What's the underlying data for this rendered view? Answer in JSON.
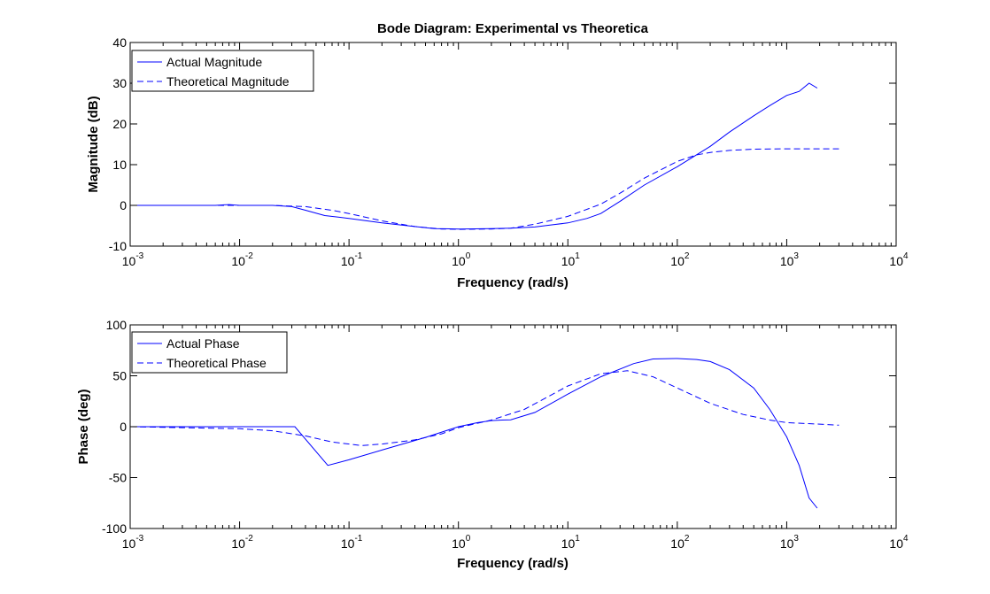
{
  "figure": {
    "title": "Bode Diagram: Experimental vs Theoretica"
  },
  "chart_data": [
    {
      "type": "line",
      "title": "Bode Diagram: Experimental vs Theoretica",
      "xlabel": "Frequency (rad/s)",
      "ylabel": "Magnitude (dB)",
      "xscale": "log",
      "xlim": [
        0.001,
        10000
      ],
      "ylim": [
        -10,
        40
      ],
      "yticks": [
        -10,
        0,
        10,
        20,
        30,
        40
      ],
      "xtick_labels": [
        {
          "base": "10",
          "exp": "-3"
        },
        {
          "base": "10",
          "exp": "-2"
        },
        {
          "base": "10",
          "exp": "-1"
        },
        {
          "base": "10",
          "exp": "0"
        },
        {
          "base": "10",
          "exp": "1"
        },
        {
          "base": "10",
          "exp": "2"
        },
        {
          "base": "10",
          "exp": "3"
        },
        {
          "base": "10",
          "exp": "4"
        }
      ],
      "grid": false,
      "legend_position": "top-left",
      "series": [
        {
          "name": "Actual Magnitude",
          "style": "solid",
          "color": "#0000ff",
          "x": [
            0.001,
            0.006,
            0.008,
            0.01,
            0.02,
            0.03,
            0.04,
            0.06,
            0.1,
            0.2,
            0.4,
            0.6,
            1,
            2,
            3,
            5,
            7,
            10,
            15,
            20,
            30,
            50,
            100,
            200,
            300,
            500,
            700,
            1000,
            1300,
            1600,
            1900
          ],
          "y": [
            0,
            0,
            0.2,
            0,
            0,
            -0.3,
            -1.2,
            -2.5,
            -3.2,
            -4.3,
            -5.2,
            -5.7,
            -5.8,
            -5.7,
            -5.6,
            -5.3,
            -4.8,
            -4.3,
            -3.2,
            -2,
            1,
            5,
            9.5,
            14.5,
            18,
            22,
            24.5,
            27,
            28,
            30,
            28.8
          ]
        },
        {
          "name": "Theoretical Magnitude",
          "style": "dashed",
          "color": "#0000ff",
          "x": [
            0.001,
            0.01,
            0.02,
            0.04,
            0.07,
            0.1,
            0.2,
            0.4,
            0.7,
            1,
            2,
            3,
            5,
            7,
            10,
            20,
            30,
            50,
            100,
            150,
            200,
            300,
            500,
            1000,
            2000,
            3000
          ],
          "y": [
            0,
            0,
            0,
            -0.3,
            -1.2,
            -2,
            -3.8,
            -5.2,
            -5.8,
            -5.9,
            -5.8,
            -5.6,
            -4.6,
            -3.7,
            -2.7,
            0.3,
            3,
            6.7,
            10.8,
            12.4,
            13,
            13.5,
            13.8,
            13.9,
            13.9,
            13.9
          ]
        }
      ]
    },
    {
      "type": "line",
      "title": "",
      "xlabel": "Frequency (rad/s)",
      "ylabel": "Phase (deg)",
      "xscale": "log",
      "xlim": [
        0.001,
        10000
      ],
      "ylim": [
        -100,
        100
      ],
      "yticks": [
        -100,
        -50,
        0,
        50,
        100
      ],
      "xtick_labels": [
        {
          "base": "10",
          "exp": "-3"
        },
        {
          "base": "10",
          "exp": "-2"
        },
        {
          "base": "10",
          "exp": "-1"
        },
        {
          "base": "10",
          "exp": "0"
        },
        {
          "base": "10",
          "exp": "1"
        },
        {
          "base": "10",
          "exp": "2"
        },
        {
          "base": "10",
          "exp": "3"
        },
        {
          "base": "10",
          "exp": "4"
        }
      ],
      "grid": false,
      "legend_position": "top-left",
      "series": [
        {
          "name": "Actual Phase",
          "style": "solid",
          "color": "#0000ff",
          "x": [
            0.001,
            0.005,
            0.01,
            0.02,
            0.032,
            0.064,
            0.1,
            0.2,
            0.5,
            1,
            1.5,
            2,
            2.5,
            3,
            5,
            10,
            20,
            40,
            60,
            100,
            150,
            200,
            300,
            500,
            700,
            1000,
            1300,
            1600,
            1900
          ],
          "y": [
            0,
            0,
            0,
            0,
            0,
            -38,
            -32.5,
            -23,
            -10.5,
            0,
            4,
            6,
            6.5,
            6.8,
            14,
            32,
            49,
            62,
            66.5,
            67,
            66,
            64,
            56,
            38,
            17,
            -10,
            -38,
            -70,
            -80
          ]
        },
        {
          "name": "Theoretical Phase",
          "style": "dashed",
          "color": "#0000ff",
          "x": [
            0.001,
            0.003,
            0.01,
            0.02,
            0.04,
            0.07,
            0.13,
            0.2,
            0.4,
            0.7,
            1,
            2,
            4,
            7,
            10,
            20,
            35,
            60,
            100,
            200,
            400,
            700,
            1000,
            2000,
            3000
          ],
          "y": [
            0,
            -1,
            -2,
            -4,
            -9,
            -15,
            -18.5,
            -17,
            -13,
            -7,
            -1,
            6.5,
            17,
            31,
            40,
            52,
            55,
            49,
            38,
            23,
            12,
            6.5,
            4,
            2.5,
            1.5
          ]
        }
      ]
    }
  ]
}
